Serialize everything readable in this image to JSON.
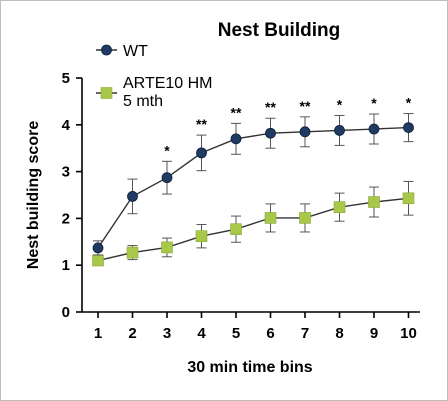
{
  "chart_data": {
    "type": "line",
    "title": "Nest Building",
    "xlabel": "30 min time bins",
    "ylabel": "Nest building score",
    "x": [
      1,
      2,
      3,
      4,
      5,
      6,
      7,
      8,
      9,
      10
    ],
    "x_ticks": [
      "1",
      "2",
      "3",
      "4",
      "5",
      "6",
      "7",
      "8",
      "9",
      "10"
    ],
    "ylim": [
      0,
      5
    ],
    "y_ticks": [
      "0",
      "1",
      "2",
      "3",
      "4",
      "5"
    ],
    "grid": false,
    "legend_position": "top-left",
    "series": [
      {
        "name": "WT",
        "marker": "circle",
        "color": "#1f3b63",
        "values": [
          1.37,
          2.47,
          2.87,
          3.4,
          3.7,
          3.82,
          3.85,
          3.88,
          3.91,
          3.94
        ],
        "error": [
          0.15,
          0.37,
          0.35,
          0.38,
          0.33,
          0.32,
          0.32,
          0.32,
          0.32,
          0.3
        ]
      },
      {
        "name": "ARTE10 HM\n5 mth",
        "marker": "square",
        "color": "#a8c84a",
        "values": [
          1.1,
          1.27,
          1.38,
          1.62,
          1.77,
          2.01,
          2.01,
          2.24,
          2.35,
          2.43
        ],
        "error": [
          0.1,
          0.15,
          0.2,
          0.25,
          0.28,
          0.3,
          0.3,
          0.3,
          0.32,
          0.36
        ]
      }
    ],
    "annotations": [
      "",
      "",
      "*",
      "**",
      "**",
      "**",
      "**",
      "*",
      "*",
      "*"
    ]
  }
}
